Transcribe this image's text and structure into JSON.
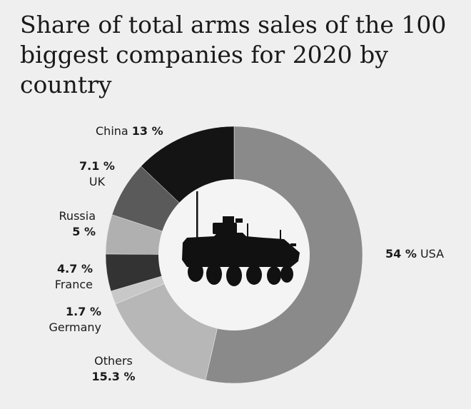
{
  "title": "Share of total arms sales of the 100 biggest companies for 2020 by country",
  "colors": {
    "background": "#efefef",
    "usa": "#8a8a8a",
    "others": "#b7b7b7",
    "germany": "#c8c8c8",
    "france": "#333333",
    "russia": "#b0b0b0",
    "uk": "#5a5a5a",
    "china": "#141414",
    "center": "#f4f4f4",
    "vehicle": "#111111"
  },
  "center_icon": "armored-vehicle-icon",
  "chart_data": {
    "type": "pie",
    "variant": "donut",
    "start_angle_deg": 0,
    "direction": "clockwise",
    "slices": [
      {
        "name": "USA",
        "value": 54,
        "label": "54 %",
        "color": "#8a8a8a"
      },
      {
        "name": "Others",
        "value": 15.3,
        "label": "15.3 %",
        "color": "#b7b7b7"
      },
      {
        "name": "Germany",
        "value": 1.7,
        "label": "1.7 %",
        "color": "#c8c8c8"
      },
      {
        "name": "France",
        "value": 4.7,
        "label": "4.7 %",
        "color": "#333333"
      },
      {
        "name": "Russia",
        "value": 5,
        "label": "5 %",
        "color": "#b0b0b0"
      },
      {
        "name": "UK",
        "value": 7.1,
        "label": "7.1 %",
        "color": "#5a5a5a"
      },
      {
        "name": "China",
        "value": 13,
        "label": "13 %",
        "color": "#141414"
      }
    ]
  }
}
